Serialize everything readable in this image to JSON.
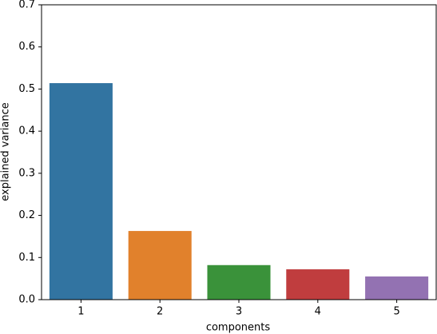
{
  "chart_data": {
    "type": "bar",
    "xlabel": "components",
    "ylabel": "explained variance",
    "categories": [
      "1",
      "2",
      "3",
      "4",
      "5"
    ],
    "values": [
      0.514,
      0.163,
      0.082,
      0.072,
      0.055
    ],
    "colors": [
      "#3274a1",
      "#e1812c",
      "#3a923a",
      "#c03d3e",
      "#9372b2"
    ],
    "ylim": [
      0,
      0.7
    ],
    "yticks": [
      {
        "value": 0,
        "label": "0.0"
      },
      0.1,
      0.2,
      0.3,
      0.4,
      0.5,
      0.6,
      0.7
    ]
  }
}
